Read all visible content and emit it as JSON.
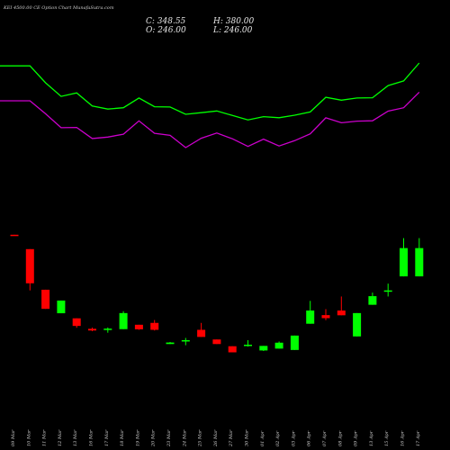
{
  "header": {
    "title": "KEI 4500.00  CE Option  Chart MunafaSutra.com",
    "close_label": "C: 348.55",
    "high_label": "H: 380.00",
    "open_label": "O: 246.00",
    "low_label": "L: 246.00"
  },
  "colors": {
    "background": "#000000",
    "up": "#00ff00",
    "down": "#ff0000",
    "upper_line": "#00ff00",
    "lower_line": "#cc00cc",
    "tick_text": "#d0d0d0"
  },
  "chart_data": {
    "type": "candlestick",
    "grid": false,
    "legend": "none",
    "categories": [
      "09 Mar",
      "10 Mar",
      "11 Mar",
      "12 Mar",
      "13 Mar",
      "16 Mar",
      "17 Mar",
      "18 Mar",
      "19 Mar",
      "20 Mar",
      "23 Mar",
      "24 Mar",
      "25 Mar",
      "26 Mar",
      "27 Mar",
      "30 Mar",
      "01 Apr",
      "02 Apr",
      "03 Apr",
      "06 Apr",
      "07 Apr",
      "08 Apr",
      "09 Apr",
      "13 Apr",
      "15 Apr",
      "16 Apr",
      "17 Apr"
    ],
    "candles": [
      {
        "open": 0.985,
        "high": 0.985,
        "low": 0.98,
        "close": 0.981
      },
      {
        "open": 0.9,
        "high": 0.9,
        "low": 0.656,
        "close": 0.698
      },
      {
        "open": 0.66,
        "high": 0.66,
        "low": 0.547,
        "close": 0.547
      },
      {
        "open": 0.521,
        "high": 0.596,
        "low": 0.521,
        "close": 0.596
      },
      {
        "open": 0.491,
        "high": 0.491,
        "low": 0.435,
        "close": 0.446
      },
      {
        "open": 0.429,
        "high": 0.436,
        "low": 0.415,
        "close": 0.419
      },
      {
        "open": 0.423,
        "high": 0.437,
        "low": 0.406,
        "close": 0.43
      },
      {
        "open": 0.427,
        "high": 0.533,
        "low": 0.427,
        "close": 0.522
      },
      {
        "open": 0.453,
        "high": 0.453,
        "low": 0.423,
        "close": 0.426
      },
      {
        "open": 0.464,
        "high": 0.481,
        "low": 0.419,
        "close": 0.423
      },
      {
        "open": 0.339,
        "high": 0.351,
        "low": 0.339,
        "close": 0.348
      },
      {
        "open": 0.362,
        "high": 0.375,
        "low": 0.332,
        "close": 0.362
      },
      {
        "open": 0.423,
        "high": 0.464,
        "low": 0.381,
        "close": 0.381
      },
      {
        "open": 0.366,
        "high": 0.366,
        "low": 0.339,
        "close": 0.339
      },
      {
        "open": 0.326,
        "high": 0.326,
        "low": 0.29,
        "close": 0.29
      },
      {
        "open": 0.331,
        "high": 0.362,
        "low": 0.324,
        "close": 0.335
      },
      {
        "open": 0.301,
        "high": 0.328,
        "low": 0.298,
        "close": 0.328
      },
      {
        "open": 0.312,
        "high": 0.354,
        "low": 0.312,
        "close": 0.347
      },
      {
        "open": 0.304,
        "high": 0.389,
        "low": 0.304,
        "close": 0.389
      },
      {
        "open": 0.459,
        "high": 0.594,
        "low": 0.459,
        "close": 0.537
      },
      {
        "open": 0.51,
        "high": 0.545,
        "low": 0.48,
        "close": 0.492
      },
      {
        "open": 0.537,
        "high": 0.62,
        "low": 0.509,
        "close": 0.509
      },
      {
        "open": 0.384,
        "high": 0.522,
        "low": 0.384,
        "close": 0.522
      },
      {
        "open": 0.571,
        "high": 0.643,
        "low": 0.571,
        "close": 0.622
      },
      {
        "open": 0.656,
        "high": 0.696,
        "low": 0.62,
        "close": 0.656
      },
      {
        "open": 0.739,
        "high": 0.965,
        "low": 0.739,
        "close": 0.906
      },
      {
        "open": 0.739,
        "high": 0.965,
        "low": 0.739,
        "close": 0.906
      }
    ],
    "upper_band": [
      0.98,
      0.98,
      0.864,
      0.771,
      0.795,
      0.705,
      0.684,
      0.693,
      0.76,
      0.7,
      0.698,
      0.648,
      0.659,
      0.671,
      0.64,
      0.61,
      0.632,
      0.625,
      0.642,
      0.664,
      0.765,
      0.745,
      0.76,
      0.762,
      0.845,
      0.877,
      1.0
    ],
    "lower_band": [
      0.741,
      0.741,
      0.652,
      0.556,
      0.558,
      0.482,
      0.492,
      0.512,
      0.603,
      0.518,
      0.504,
      0.42,
      0.484,
      0.52,
      0.48,
      0.428,
      0.478,
      0.431,
      0.467,
      0.514,
      0.624,
      0.59,
      0.601,
      0.604,
      0.67,
      0.693,
      0.8
    ]
  }
}
